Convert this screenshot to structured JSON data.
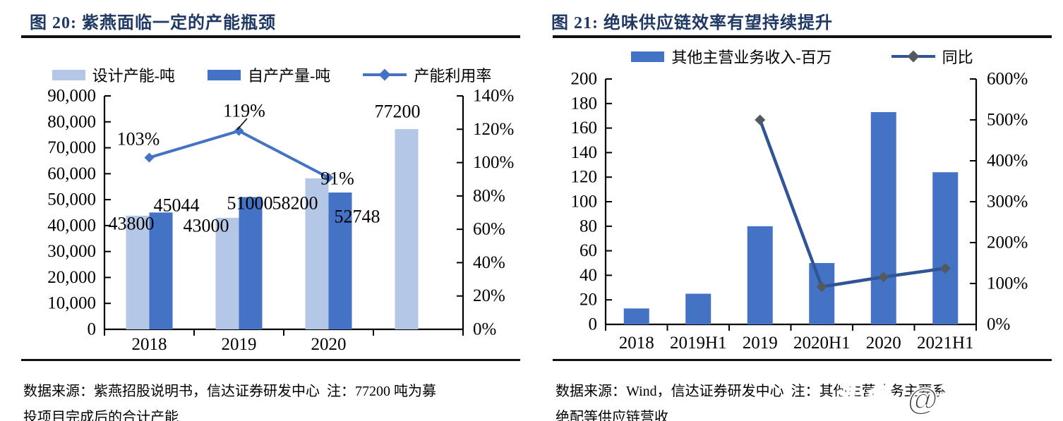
{
  "watermark": "头条 @远瞻智库",
  "colors": {
    "accent_blue": "#4472C4",
    "light_blue": "#B4C7E7",
    "navy_line": "#2F5597",
    "marker_gray": "#54595F",
    "title_navy": "#1F3864"
  },
  "figures": [
    {
      "title": "图 20: 紫燕面临一定的产能瓶颈",
      "legend": [
        {
          "label": "设计产能-吨"
        },
        {
          "label": "自产产量-吨"
        },
        {
          "label": "产能利用率"
        }
      ],
      "source_line1": "数据来源：紫燕招股说明书，信达证券研发中心  注：77200 吨为募",
      "source_line2": "投项目完成后的合计产能"
    },
    {
      "title": "图 21: 绝味供应链效率有望持续提升",
      "legend": [
        {
          "label": "其他主营业务收入-百万"
        },
        {
          "label": "同比"
        }
      ],
      "source_line1": "数据来源：Wind，信达证券研发中心  注：其他主营业务主要系",
      "source_line2": "绝配等供应链营收"
    }
  ],
  "chart_data": [
    {
      "type": "bar",
      "subtype": "grouped-bar-with-line-dual-axis",
      "title": "图 20: 紫燕面临一定的产能瓶颈",
      "categories": [
        "2018",
        "2019",
        "2020",
        ""
      ],
      "series": [
        {
          "name": "设计产能-吨",
          "kind": "bar",
          "axis": "left",
          "color": "#B4C7E7",
          "values": [
            43800,
            43000,
            58200,
            77200
          ]
        },
        {
          "name": "自产产量-吨",
          "kind": "bar",
          "axis": "left",
          "color": "#4472C4",
          "values": [
            45044,
            51000,
            52748,
            null
          ]
        },
        {
          "name": "产能利用率",
          "kind": "line",
          "axis": "right",
          "color": "#4472C4",
          "marker": "diamond",
          "marker_color": "#4472C4",
          "values_pct": [
            103,
            119,
            91,
            null
          ]
        }
      ],
      "left_axis": {
        "min": 0,
        "max": 90000,
        "step": 10000,
        "tick_labels": [
          "90,000",
          "80,000",
          "70,000",
          "60,000",
          "50,000",
          "40,000",
          "30,000",
          "20,000",
          "10,000",
          "0"
        ]
      },
      "right_axis": {
        "min": 0,
        "max": 140,
        "step": 20,
        "tick_labels": [
          "140%",
          "120%",
          "100%",
          "80%",
          "60%",
          "40%",
          "20%",
          "0%"
        ]
      },
      "data_labels": [
        "43800",
        "45044",
        "43000",
        "51000",
        "58200",
        "52748",
        "77200",
        "103%",
        "119%",
        "91%"
      ],
      "legend_position": "top",
      "grid": false
    },
    {
      "type": "bar",
      "subtype": "bar-with-line-dual-axis",
      "title": "图 21: 绝味供应链效率有望持续提升",
      "categories": [
        "2018",
        "2019H1",
        "2019",
        "2020H1",
        "2020",
        "2021H1"
      ],
      "series": [
        {
          "name": "其他主营业务收入-百万",
          "kind": "bar",
          "axis": "left",
          "color": "#4472C4",
          "values": [
            13,
            25,
            80,
            50,
            173,
            124
          ]
        },
        {
          "name": "同比",
          "kind": "line",
          "axis": "right",
          "color": "#2F5597",
          "marker": "diamond",
          "marker_color": "#54595F",
          "values_pct": [
            null,
            null,
            500,
            92,
            116,
            137
          ]
        }
      ],
      "left_axis": {
        "min": 0,
        "max": 200,
        "step": 20,
        "tick_labels": [
          "200",
          "180",
          "160",
          "140",
          "120",
          "100",
          "80",
          "60",
          "40",
          "20",
          "0"
        ]
      },
      "right_axis": {
        "min": 0,
        "max": 600,
        "step": 100,
        "tick_labels": [
          "600%",
          "500%",
          "400%",
          "300%",
          "200%",
          "100%",
          "0%"
        ]
      },
      "data_labels": [],
      "legend_position": "top",
      "grid": false
    }
  ]
}
